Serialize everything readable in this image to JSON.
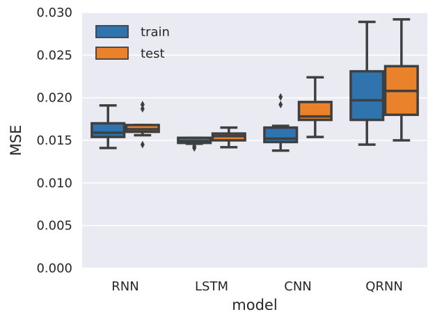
{
  "chart_data": {
    "type": "boxplot",
    "title": "",
    "xlabel": "model",
    "ylabel": "MSE",
    "ylim": [
      0.0,
      0.03
    ],
    "yticks": [
      "0.000",
      "0.005",
      "0.010",
      "0.015",
      "0.020",
      "0.025",
      "0.030"
    ],
    "ytick_values": [
      0.0,
      0.005,
      0.01,
      0.015,
      0.02,
      0.025,
      0.03
    ],
    "categories": [
      "RNN",
      "LSTM",
      "CNN",
      "QRNN"
    ],
    "grid": true,
    "legend_position": "top-left",
    "series": [
      {
        "name": "train",
        "color": "#2f74ae",
        "boxes": [
          {
            "whislo": 0.0141,
            "q1": 0.0154,
            "med": 0.0159,
            "q3": 0.017,
            "whishi": 0.0191,
            "fliers": []
          },
          {
            "whislo": 0.0146,
            "q1": 0.0147,
            "med": 0.0149,
            "q3": 0.0153,
            "whishi": 0.0153,
            "fliers": [
              0.0143,
              0.0141
            ]
          },
          {
            "whislo": 0.0138,
            "q1": 0.0148,
            "med": 0.0152,
            "q3": 0.0165,
            "whishi": 0.0167,
            "fliers": [
              0.0201,
              0.0192
            ]
          },
          {
            "whislo": 0.0145,
            "q1": 0.0174,
            "med": 0.0197,
            "q3": 0.0231,
            "whishi": 0.0289,
            "fliers": []
          }
        ]
      },
      {
        "name": "test",
        "color": "#e9822a",
        "boxes": [
          {
            "whislo": 0.0156,
            "q1": 0.016,
            "med": 0.0163,
            "q3": 0.0168,
            "whishi": 0.0168,
            "fliers": [
              0.0192,
              0.0187,
              0.0145
            ]
          },
          {
            "whislo": 0.0142,
            "q1": 0.015,
            "med": 0.0155,
            "q3": 0.0158,
            "whishi": 0.0165,
            "fliers": []
          },
          {
            "whislo": 0.0154,
            "q1": 0.0174,
            "med": 0.0178,
            "q3": 0.0195,
            "whishi": 0.0224,
            "fliers": []
          },
          {
            "whislo": 0.015,
            "q1": 0.018,
            "med": 0.0208,
            "q3": 0.0237,
            "whishi": 0.0292,
            "fliers": []
          }
        ]
      }
    ]
  }
}
